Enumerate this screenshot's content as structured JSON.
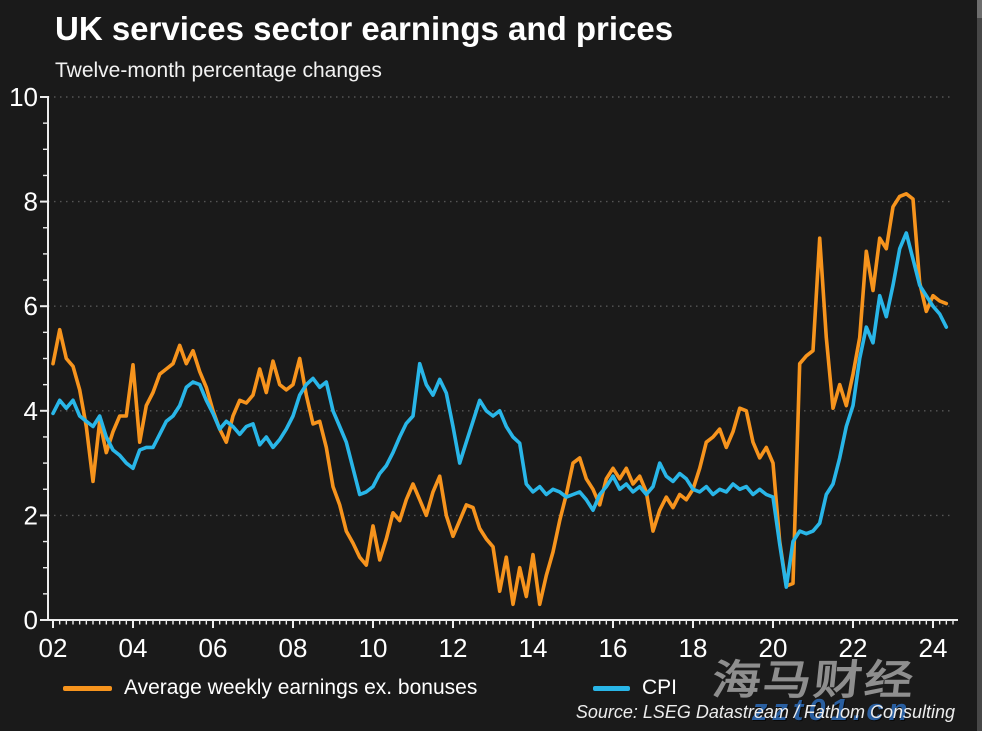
{
  "header": {
    "title": "UK services sector earnings and prices",
    "subtitle": "Twelve-month percentage changes"
  },
  "chart_data": {
    "type": "line",
    "title": "UK services sector earnings and prices",
    "subtitle": "Twelve-month percentage changes",
    "xlabel": "",
    "ylabel": "",
    "grid": "dotted horizontal at even values",
    "legend_position": "bottom",
    "x_start_year": 2002,
    "x_step_years": 0.166667,
    "x_axis": {
      "range": [
        2002,
        2024.6
      ],
      "tick_years": [
        2002,
        2004,
        2006,
        2008,
        2010,
        2012,
        2014,
        2016,
        2018,
        2020,
        2022,
        2024
      ],
      "tick_labels": [
        "02",
        "04",
        "06",
        "08",
        "10",
        "12",
        "14",
        "16",
        "18",
        "20",
        "22",
        "24"
      ],
      "minor_tick_step_years": 0.166667
    },
    "y_axis": {
      "range": [
        0,
        10
      ],
      "ticks": [
        0,
        2,
        4,
        6,
        8,
        10
      ],
      "tick_labels": [
        "0",
        "2",
        "4",
        "6",
        "8",
        "10"
      ],
      "minor_step": 0.5,
      "gridlines_at": [
        2,
        4,
        6,
        8,
        10
      ]
    },
    "series": [
      {
        "name": "Average weekly earnings ex. bonuses",
        "color": "#F7941D",
        "values": [
          4.9,
          5.55,
          5.0,
          4.85,
          4.4,
          3.7,
          2.65,
          3.8,
          3.2,
          3.6,
          3.9,
          3.9,
          4.88,
          3.4,
          4.1,
          4.35,
          4.7,
          4.8,
          4.9,
          5.25,
          4.9,
          5.15,
          4.75,
          4.45,
          4.0,
          3.65,
          3.4,
          3.9,
          4.2,
          4.15,
          4.3,
          4.8,
          4.35,
          4.95,
          4.5,
          4.4,
          4.5,
          5.0,
          4.3,
          3.75,
          3.8,
          3.3,
          2.55,
          2.2,
          1.7,
          1.47,
          1.2,
          1.05,
          1.8,
          1.15,
          1.55,
          2.05,
          1.9,
          2.3,
          2.6,
          2.3,
          2.0,
          2.45,
          2.75,
          2.0,
          1.6,
          1.9,
          2.2,
          2.15,
          1.75,
          1.55,
          1.4,
          0.55,
          1.2,
          0.3,
          1.0,
          0.45,
          1.25,
          0.3,
          0.85,
          1.3,
          1.9,
          2.4,
          3.0,
          3.1,
          2.7,
          2.5,
          2.2,
          2.7,
          2.9,
          2.7,
          2.9,
          2.6,
          2.75,
          2.45,
          1.7,
          2.1,
          2.35,
          2.15,
          2.4,
          2.3,
          2.5,
          2.9,
          3.4,
          3.5,
          3.65,
          3.3,
          3.6,
          4.05,
          4.0,
          3.4,
          3.1,
          3.3,
          3.0,
          1.5,
          0.65,
          0.7,
          4.9,
          5.05,
          5.15,
          7.3,
          5.4,
          4.05,
          4.5,
          4.1,
          4.7,
          5.4,
          7.05,
          6.3,
          7.3,
          7.1,
          7.9,
          8.1,
          8.15,
          8.05,
          6.45,
          5.9,
          6.2,
          6.1,
          6.05
        ]
      },
      {
        "name": "CPI",
        "color": "#29B6E8",
        "values": [
          3.95,
          4.2,
          4.05,
          4.2,
          3.9,
          3.8,
          3.7,
          3.9,
          3.5,
          3.25,
          3.15,
          3.0,
          2.9,
          3.25,
          3.3,
          3.3,
          3.55,
          3.8,
          3.9,
          4.1,
          4.45,
          4.55,
          4.5,
          4.2,
          3.95,
          3.65,
          3.8,
          3.7,
          3.55,
          3.7,
          3.75,
          3.35,
          3.5,
          3.3,
          3.45,
          3.65,
          3.9,
          4.3,
          4.5,
          4.62,
          4.45,
          4.55,
          4.0,
          3.7,
          3.4,
          2.9,
          2.4,
          2.45,
          2.55,
          2.8,
          2.95,
          3.2,
          3.5,
          3.76,
          3.9,
          4.9,
          4.5,
          4.3,
          4.6,
          4.34,
          3.7,
          3.0,
          3.4,
          3.8,
          4.2,
          4.0,
          3.9,
          4.0,
          3.7,
          3.5,
          3.38,
          2.6,
          2.45,
          2.55,
          2.4,
          2.5,
          2.45,
          2.35,
          2.4,
          2.45,
          2.3,
          2.1,
          2.4,
          2.55,
          2.75,
          2.5,
          2.6,
          2.45,
          2.55,
          2.4,
          2.55,
          3.0,
          2.75,
          2.65,
          2.8,
          2.7,
          2.5,
          2.45,
          2.55,
          2.4,
          2.5,
          2.45,
          2.6,
          2.5,
          2.55,
          2.4,
          2.5,
          2.4,
          2.35,
          1.45,
          0.63,
          1.5,
          1.7,
          1.65,
          1.7,
          1.85,
          2.4,
          2.6,
          3.1,
          3.7,
          4.1,
          5.0,
          5.6,
          5.3,
          6.2,
          5.8,
          6.4,
          7.1,
          7.4,
          6.9,
          6.4,
          6.2,
          6.0,
          5.85,
          5.6
        ]
      }
    ]
  },
  "legend": {
    "items": [
      {
        "label": "Average weekly earnings ex. bonuses",
        "color": "#F7941D"
      },
      {
        "label": "CPI",
        "color": "#29B6E8"
      }
    ]
  },
  "source": {
    "text": "Source: LSEG Datastream / Fathom Consulting"
  },
  "watermark": {
    "line1": "海马财经",
    "line2": "zzt01.cn"
  },
  "colors": {
    "background": "#1A1A1A",
    "axis": "#ECECEC",
    "grid": "#555555",
    "text": "#FFFFFF",
    "earnings_line": "#F7941D",
    "cpi_line": "#29B6E8"
  }
}
